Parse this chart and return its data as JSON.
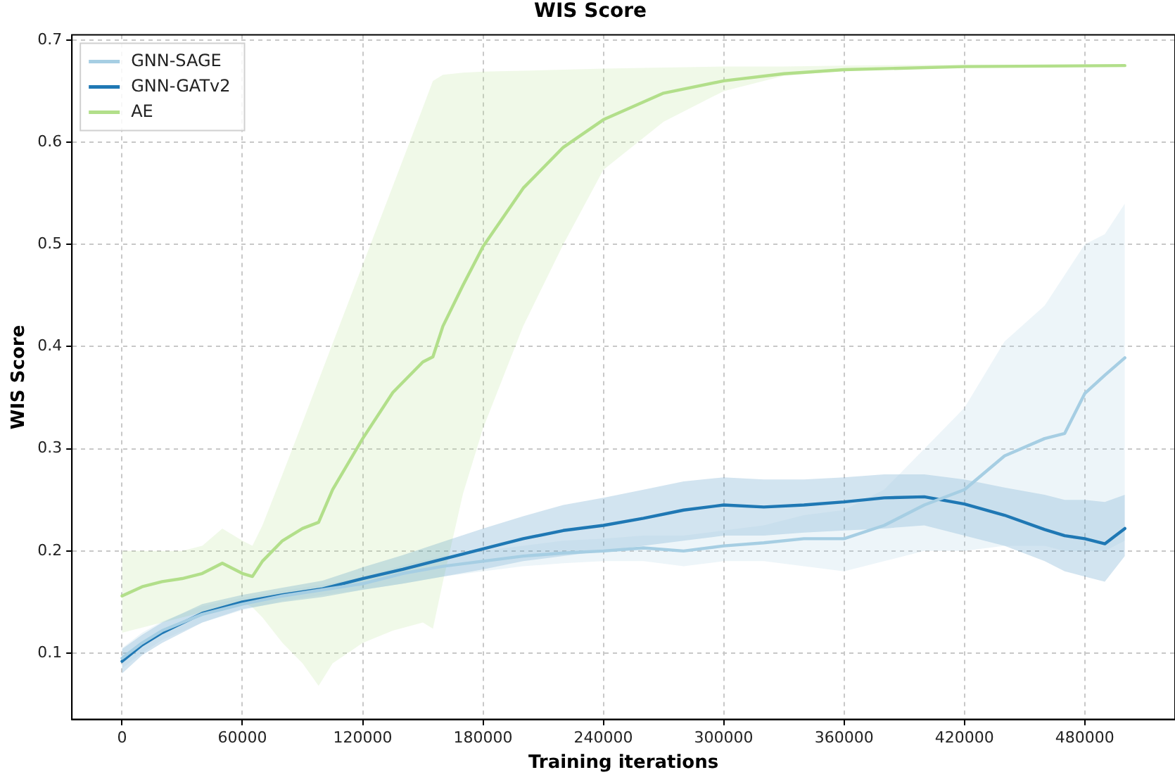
{
  "chart_data": {
    "type": "line",
    "title": "WIS Score",
    "xlabel": "Training iterations",
    "ylabel": "WIS Score",
    "xlim": [
      -25000,
      525000
    ],
    "xticks": [
      0,
      60000,
      120000,
      180000,
      240000,
      300000,
      360000,
      420000,
      480000
    ],
    "ylim": [
      0.035,
      0.705
    ],
    "yticks": [
      0.1,
      0.2,
      0.3,
      0.4,
      0.5,
      0.6,
      0.7
    ],
    "grid": true,
    "legend": "top left",
    "marker": "none",
    "line_style": "solid",
    "series": [
      {
        "name": "GNN-SAGE",
        "color": "#a6cee3",
        "x": [
          0,
          10000,
          20000,
          40000,
          60000,
          80000,
          100000,
          120000,
          140000,
          160000,
          180000,
          200000,
          220000,
          240000,
          260000,
          280000,
          300000,
          320000,
          340000,
          360000,
          380000,
          400000,
          420000,
          440000,
          460000,
          470000,
          480000,
          490000,
          500000
        ],
        "values": [
          0.095,
          0.11,
          0.122,
          0.138,
          0.148,
          0.156,
          0.162,
          0.168,
          0.178,
          0.185,
          0.19,
          0.195,
          0.198,
          0.2,
          0.203,
          0.2,
          0.205,
          0.208,
          0.212,
          0.212,
          0.225,
          0.245,
          0.26,
          0.293,
          0.31,
          0.315,
          0.354,
          0.372,
          0.389
        ],
        "lower": [
          0.085,
          0.1,
          0.113,
          0.13,
          0.142,
          0.151,
          0.157,
          0.162,
          0.168,
          0.175,
          0.18,
          0.185,
          0.188,
          0.19,
          0.19,
          0.185,
          0.19,
          0.19,
          0.185,
          0.18,
          0.19,
          0.2,
          0.2,
          0.205,
          0.205,
          0.2,
          0.2,
          0.2,
          0.21
        ],
        "upper": [
          0.105,
          0.12,
          0.131,
          0.146,
          0.154,
          0.161,
          0.167,
          0.174,
          0.186,
          0.195,
          0.2,
          0.205,
          0.21,
          0.212,
          0.215,
          0.215,
          0.22,
          0.225,
          0.235,
          0.24,
          0.26,
          0.3,
          0.34,
          0.405,
          0.44,
          0.47,
          0.5,
          0.51,
          0.54
        ]
      },
      {
        "name": "GNN-GATv2",
        "color": "#1f78b4",
        "x": [
          0,
          10000,
          20000,
          40000,
          60000,
          80000,
          100000,
          120000,
          140000,
          160000,
          180000,
          200000,
          220000,
          240000,
          260000,
          280000,
          300000,
          320000,
          340000,
          360000,
          380000,
          400000,
          420000,
          440000,
          460000,
          470000,
          480000,
          490000,
          500000
        ],
        "values": [
          0.092,
          0.108,
          0.12,
          0.139,
          0.15,
          0.157,
          0.163,
          0.173,
          0.182,
          0.192,
          0.202,
          0.212,
          0.22,
          0.225,
          0.232,
          0.24,
          0.245,
          0.243,
          0.245,
          0.248,
          0.252,
          0.253,
          0.246,
          0.235,
          0.221,
          0.215,
          0.212,
          0.207,
          0.222
        ],
        "lower": [
          0.08,
          0.098,
          0.11,
          0.13,
          0.143,
          0.15,
          0.155,
          0.162,
          0.168,
          0.175,
          0.182,
          0.19,
          0.195,
          0.2,
          0.205,
          0.21,
          0.215,
          0.215,
          0.218,
          0.22,
          0.222,
          0.225,
          0.215,
          0.205,
          0.19,
          0.18,
          0.175,
          0.17,
          0.195
        ],
        "upper": [
          0.104,
          0.118,
          0.13,
          0.148,
          0.157,
          0.164,
          0.171,
          0.184,
          0.196,
          0.209,
          0.222,
          0.234,
          0.245,
          0.252,
          0.26,
          0.268,
          0.272,
          0.27,
          0.27,
          0.272,
          0.275,
          0.275,
          0.27,
          0.262,
          0.255,
          0.25,
          0.25,
          0.248,
          0.255
        ]
      },
      {
        "name": "AE",
        "color": "#b2df8a",
        "x": [
          0,
          10000,
          20000,
          30000,
          40000,
          50000,
          60000,
          65000,
          70000,
          80000,
          90000,
          98000,
          105000,
          120000,
          135000,
          150000,
          155000,
          160000,
          170000,
          180000,
          200000,
          220000,
          240000,
          270000,
          300000,
          330000,
          360000,
          420000,
          500000
        ],
        "values": [
          0.156,
          0.165,
          0.17,
          0.173,
          0.178,
          0.188,
          0.178,
          0.175,
          0.19,
          0.21,
          0.222,
          0.228,
          0.26,
          0.31,
          0.355,
          0.385,
          0.39,
          0.42,
          0.46,
          0.498,
          0.555,
          0.595,
          0.622,
          0.648,
          0.66,
          0.667,
          0.671,
          0.674,
          0.675
        ],
        "lower": [
          0.12,
          0.125,
          0.13,
          0.135,
          0.14,
          0.145,
          0.15,
          0.145,
          0.135,
          0.11,
          0.09,
          0.068,
          0.09,
          0.11,
          0.122,
          0.13,
          0.124,
          0.17,
          0.256,
          0.32,
          0.42,
          0.5,
          0.573,
          0.62,
          0.65,
          0.665,
          0.67,
          0.673,
          0.674
        ],
        "upper": [
          0.2,
          0.2,
          0.2,
          0.2,
          0.205,
          0.222,
          0.21,
          0.205,
          0.225,
          0.275,
          0.326,
          0.367,
          0.403,
          0.48,
          0.557,
          0.634,
          0.66,
          0.666,
          0.668,
          0.669,
          0.67,
          0.671,
          0.672,
          0.673,
          0.674,
          0.674,
          0.675,
          0.676,
          0.676
        ]
      }
    ]
  }
}
